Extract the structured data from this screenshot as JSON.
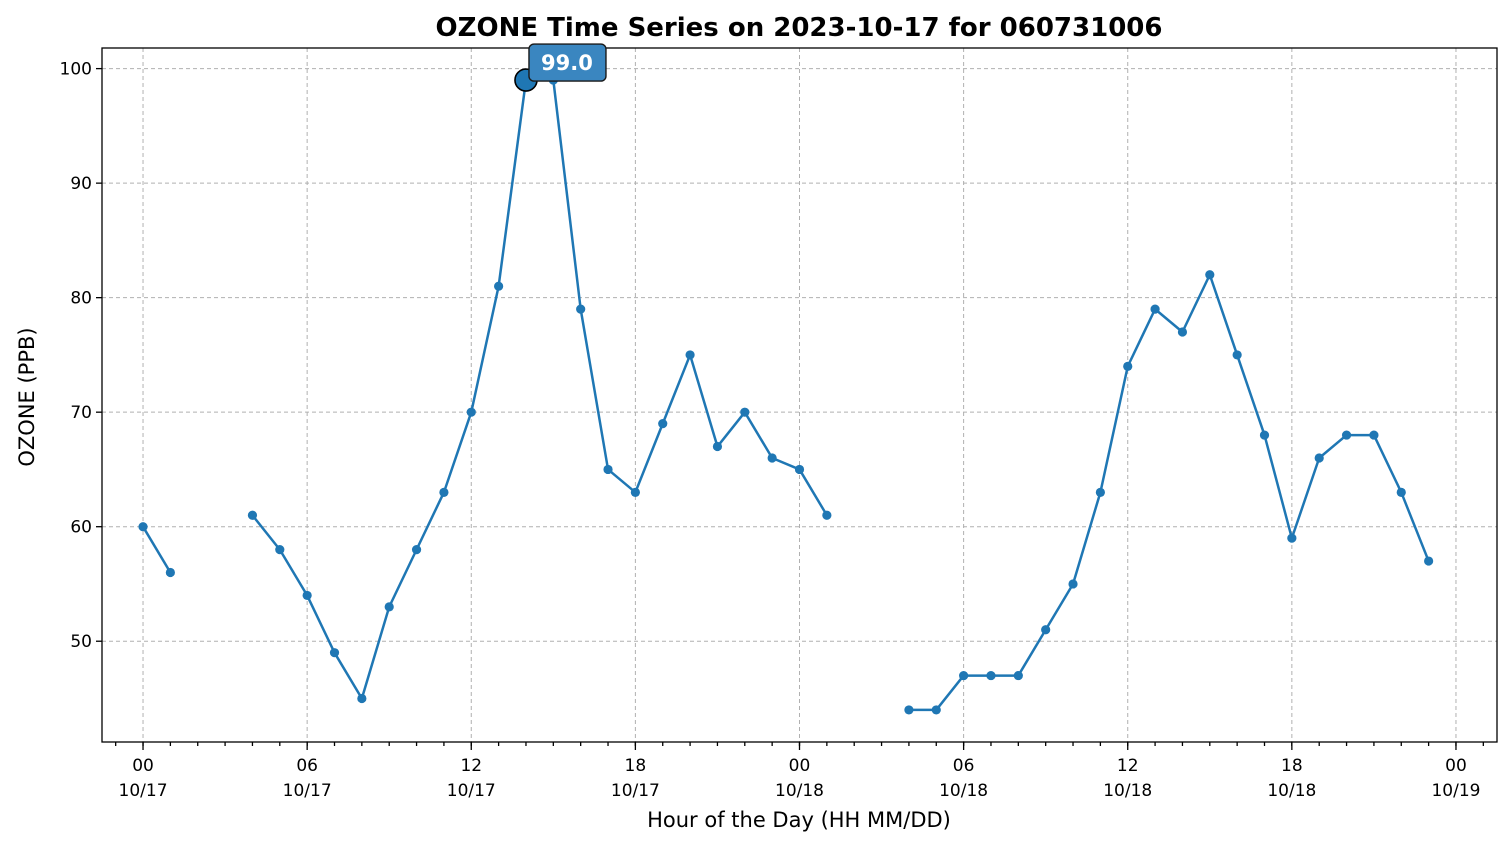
{
  "chart_data": {
    "type": "line",
    "title": "OZONE Time Series on 2023-10-17 for 060731006",
    "xlabel": "Hour of the Day (HH MM/DD)",
    "ylabel": "OZONE (PPB)",
    "x_range": [
      "2023-10-16 22:30",
      "2023-10-19 01:30"
    ],
    "ylim": [
      41.2,
      101.8
    ],
    "y_ticks": [
      50,
      60,
      70,
      80,
      90,
      100
    ],
    "x_ticks": [
      {
        "time": "2023-10-17 00:00",
        "hour": "00",
        "date": "10/17"
      },
      {
        "time": "2023-10-17 06:00",
        "hour": "06",
        "date": "10/17"
      },
      {
        "time": "2023-10-17 12:00",
        "hour": "12",
        "date": "10/17"
      },
      {
        "time": "2023-10-17 18:00",
        "hour": "18",
        "date": "10/17"
      },
      {
        "time": "2023-10-18 00:00",
        "hour": "00",
        "date": "10/18"
      },
      {
        "time": "2023-10-18 06:00",
        "hour": "06",
        "date": "10/18"
      },
      {
        "time": "2023-10-18 12:00",
        "hour": "12",
        "date": "10/18"
      },
      {
        "time": "2023-10-18 18:00",
        "hour": "18",
        "date": "10/18"
      },
      {
        "time": "2023-10-19 00:00",
        "hour": "00",
        "date": "10/19"
      }
    ],
    "minor_ticks": "hourly",
    "grid": true,
    "line_color": "#1f77b4",
    "series": [
      {
        "x": [
          "2023-10-17 00:00",
          "2023-10-17 01:00",
          "2023-10-17 02:00",
          "2023-10-17 03:00",
          "2023-10-17 04:00",
          "2023-10-17 05:00",
          "2023-10-17 06:00",
          "2023-10-17 07:00",
          "2023-10-17 08:00",
          "2023-10-17 09:00",
          "2023-10-17 10:00",
          "2023-10-17 11:00",
          "2023-10-17 12:00",
          "2023-10-17 13:00",
          "2023-10-17 14:00",
          "2023-10-17 15:00",
          "2023-10-17 16:00",
          "2023-10-17 17:00",
          "2023-10-17 18:00",
          "2023-10-17 19:00",
          "2023-10-17 20:00",
          "2023-10-17 21:00",
          "2023-10-17 22:00",
          "2023-10-17 23:00",
          "2023-10-18 00:00",
          "2023-10-18 01:00",
          "2023-10-18 02:00",
          "2023-10-18 03:00",
          "2023-10-18 04:00",
          "2023-10-18 05:00",
          "2023-10-18 06:00",
          "2023-10-18 07:00",
          "2023-10-18 08:00",
          "2023-10-18 09:00",
          "2023-10-18 10:00",
          "2023-10-18 11:00",
          "2023-10-18 12:00",
          "2023-10-18 13:00",
          "2023-10-18 14:00",
          "2023-10-18 15:00",
          "2023-10-18 16:00",
          "2023-10-18 17:00",
          "2023-10-18 18:00",
          "2023-10-18 19:00",
          "2023-10-18 20:00",
          "2023-10-18 21:00",
          "2023-10-18 22:00",
          "2023-10-18 23:00"
        ],
        "y": [
          60,
          56,
          null,
          null,
          61,
          58,
          54,
          49,
          45,
          53,
          58,
          63,
          70,
          81,
          99,
          99,
          79,
          65,
          63,
          69,
          75,
          67,
          70,
          66,
          65,
          61,
          null,
          null,
          44,
          44,
          47,
          47,
          47,
          51,
          55,
          63,
          74,
          79,
          77,
          82,
          75,
          68,
          59,
          66,
          68,
          68,
          63,
          57
        ]
      }
    ],
    "annotation": {
      "x": "2023-10-17 14:00",
      "y": 99,
      "text": "99.0",
      "box_color": "#3a86c0"
    }
  }
}
